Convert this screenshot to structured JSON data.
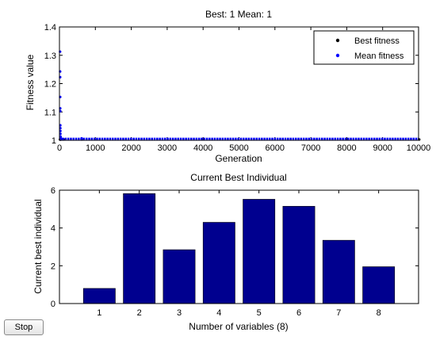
{
  "stop_button": {
    "label": "Stop"
  },
  "chart_data": [
    {
      "type": "scatter",
      "title": "Best: 1 Mean: 1",
      "xlabel": "Generation",
      "ylabel": "Fitness value",
      "xlim": [
        0,
        10000
      ],
      "ylim": [
        1,
        1.4
      ],
      "x_ticks": [
        0,
        1000,
        2000,
        3000,
        4000,
        5000,
        6000,
        7000,
        8000,
        9000,
        10000
      ],
      "x_tick_labels": [
        "0",
        "1000",
        "2000",
        "3000",
        "4000",
        "5000",
        "6000",
        "7000",
        "8000",
        "9000",
        "10000"
      ],
      "y_ticks": [
        1,
        1.1,
        1.2,
        1.3,
        1.4
      ],
      "y_tick_labels": [
        "1",
        "1.1",
        "1.2",
        "1.3",
        "1.4"
      ],
      "grid": false,
      "legend_position": "top-right",
      "series": [
        {
          "name": "Best fitness",
          "color": "#000000",
          "marker": "dot",
          "x": [
            0,
            1,
            2,
            3,
            5,
            10,
            20,
            50,
            100,
            600,
            10000
          ],
          "y": [
            1,
            1,
            1,
            1,
            1,
            1,
            1,
            1,
            1,
            1,
            1
          ]
        },
        {
          "name": "Mean fitness",
          "color": "#0000ff",
          "marker": "dot",
          "x": [
            0,
            1,
            2,
            3,
            4,
            5,
            6,
            7,
            8,
            9,
            10,
            12,
            15,
            20,
            30,
            50,
            600
          ],
          "y": [
            1.31,
            1.24,
            1.22,
            1.15,
            1.11,
            1.1,
            1.05,
            1.04,
            1.03,
            1.02,
            1.01,
            1.01,
            1.005,
            1.003,
            1.002,
            1.002,
            1.004
          ],
          "dense_band": {
            "from": 0,
            "to": 10000,
            "value": 1
          }
        }
      ]
    },
    {
      "type": "bar",
      "title": "Current Best Individual",
      "xlabel": "Number of variables (8)",
      "ylabel": "Current best individual",
      "categories": [
        "1",
        "2",
        "3",
        "4",
        "5",
        "6",
        "7",
        "8"
      ],
      "values": [
        0.8,
        5.82,
        2.85,
        4.3,
        5.52,
        5.15,
        3.35,
        1.95
      ],
      "ylim": [
        0,
        6
      ],
      "y_ticks": [
        0,
        2,
        4,
        6
      ],
      "y_tick_labels": [
        "0",
        "2",
        "4",
        "6"
      ],
      "bar_color": "#00008f",
      "grid": false
    }
  ]
}
